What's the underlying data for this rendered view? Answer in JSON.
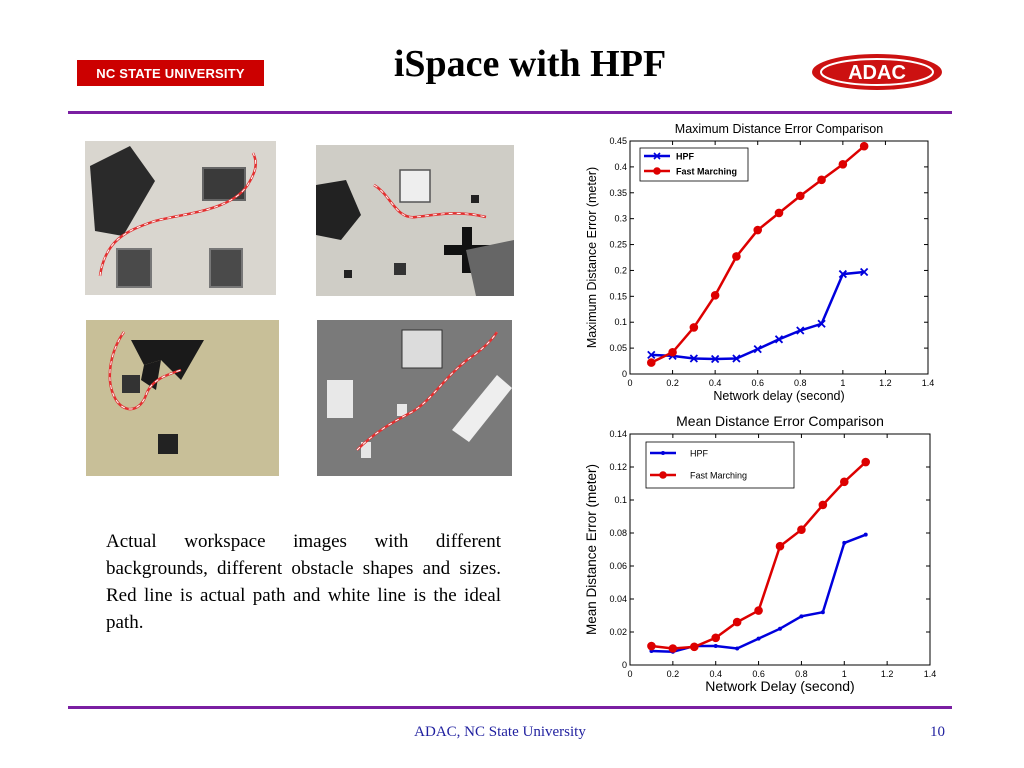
{
  "header": {
    "university_logo": "NC STATE  UNIVERSITY",
    "title": "iSpace with HPF",
    "lab_logo": "ADAC"
  },
  "caption": "Actual workspace images with different backgrounds, different  obstacle shapes and sizes. Red line is actual path and white line is the ideal path.",
  "footer": {
    "text": "ADAC, NC State University",
    "page": "10"
  },
  "colors": {
    "accent_rule": "#7a1fa2",
    "nc_red": "#cc0000",
    "hpf": "#0000dd",
    "fast_marching": "#dd0000"
  },
  "images": [
    {
      "name": "workspace-photo-1",
      "kind": "overhead camera photo, light floor, chairs"
    },
    {
      "name": "workspace-photo-2",
      "kind": "overhead camera photo, light floor, cross obstacle"
    },
    {
      "name": "workspace-photo-3",
      "kind": "overhead camera photo, beige floor, triangular obstacle"
    },
    {
      "name": "workspace-photo-4",
      "kind": "overhead camera photo, gray floor, boxes"
    }
  ],
  "chart_data": [
    {
      "type": "line",
      "title": "Maximum Distance Error Comparison",
      "xlabel": "Network delay (second)",
      "ylabel": "Maximum Distance Error (meter)",
      "xlim": [
        0,
        1.4
      ],
      "ylim": [
        0,
        0.45
      ],
      "xticks": [
        "0",
        "0.2",
        "0.4",
        "0.6",
        "0.8",
        "1",
        "1.2",
        "1.4"
      ],
      "yticks": [
        "0",
        "0.05",
        "0.1",
        "0.15",
        "0.2",
        "0.25",
        "0.3",
        "0.35",
        "0.4",
        "0.45"
      ],
      "legend_position": "top-left",
      "grid": false,
      "x": [
        0.1,
        0.2,
        0.3,
        0.4,
        0.5,
        0.6,
        0.7,
        0.8,
        0.9,
        1.0,
        1.1
      ],
      "series": [
        {
          "name": "HPF",
          "color": "#0000dd",
          "marker": "x",
          "values": [
            0.037,
            0.035,
            0.03,
            0.029,
            0.03,
            0.048,
            0.067,
            0.084,
            0.097,
            0.193,
            0.197
          ]
        },
        {
          "name": "Fast Marching",
          "color": "#dd0000",
          "marker": "circle",
          "values": [
            0.022,
            0.042,
            0.09,
            0.152,
            0.227,
            0.278,
            0.311,
            0.344,
            0.375,
            0.405,
            0.44
          ]
        }
      ]
    },
    {
      "type": "line",
      "title": "Mean Distance Error Comparison",
      "xlabel": "Network Delay (second)",
      "ylabel": "Mean Distance Error (meter)",
      "xlim": [
        0,
        1.4
      ],
      "ylim": [
        0,
        0.14
      ],
      "xticks": [
        "0",
        "0.2",
        "0.4",
        "0.6",
        "0.8",
        "1",
        "1.2",
        "1.4"
      ],
      "yticks": [
        "0",
        "0.02",
        "0.04",
        "0.06",
        "0.08",
        "0.1",
        "0.12",
        "0.14"
      ],
      "legend_position": "top-left",
      "grid": false,
      "x": [
        0.1,
        0.2,
        0.3,
        0.4,
        0.5,
        0.6,
        0.7,
        0.8,
        0.9,
        1.0,
        1.1
      ],
      "series": [
        {
          "name": "HPF",
          "color": "#0000dd",
          "marker": "dot",
          "values": [
            0.0085,
            0.008,
            0.0115,
            0.0115,
            0.01,
            0.016,
            0.022,
            0.0295,
            0.032,
            0.074,
            0.079
          ]
        },
        {
          "name": "Fast Marching",
          "color": "#dd0000",
          "marker": "circle",
          "values": [
            0.0115,
            0.01,
            0.011,
            0.0165,
            0.026,
            0.033,
            0.072,
            0.082,
            0.097,
            0.111,
            0.123
          ]
        }
      ]
    }
  ]
}
